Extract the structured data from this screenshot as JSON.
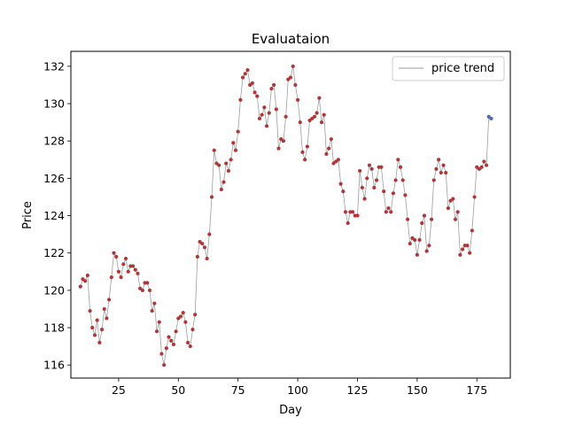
{
  "chart_data": {
    "type": "line",
    "title": "Evaluataion",
    "xlabel": "Day",
    "ylabel": "Price",
    "xlim": [
      5,
      189
    ],
    "ylim": [
      115.3,
      132.8
    ],
    "xticks": [
      25,
      50,
      75,
      100,
      125,
      150,
      175
    ],
    "yticks": [
      116,
      118,
      120,
      122,
      124,
      126,
      128,
      130,
      132
    ],
    "grid": false,
    "legend": {
      "position": "top-right",
      "entries": [
        "price trend"
      ]
    },
    "colors": {
      "line": "#9e9e9e",
      "marker": "#d62728",
      "marker_edge": "#555555",
      "highlight": "#4a6fd1"
    },
    "series": [
      {
        "name": "price trend",
        "x_start": 9,
        "values": [
          120.2,
          120.6,
          120.5,
          120.8,
          118.9,
          118.0,
          117.6,
          118.4,
          117.2,
          117.9,
          119.0,
          118.5,
          119.5,
          120.7,
          122.0,
          121.8,
          121.0,
          120.7,
          121.4,
          121.7,
          121.0,
          121.3,
          121.3,
          121.1,
          120.9,
          120.1,
          120.0,
          120.4,
          120.4,
          120.0,
          118.9,
          119.3,
          117.8,
          118.3,
          116.6,
          116.0,
          116.9,
          117.5,
          117.3,
          117.1,
          117.8,
          118.5,
          118.6,
          118.8,
          118.3,
          117.2,
          117.0,
          117.9,
          118.7,
          121.8,
          122.6,
          122.5,
          122.3,
          121.7,
          123.0,
          125.0,
          127.5,
          126.8,
          126.7,
          125.4,
          125.8,
          126.8,
          126.4,
          127.0,
          127.9,
          127.5,
          128.5,
          130.2,
          131.4,
          131.6,
          131.8,
          131.0,
          131.1,
          130.6,
          130.4,
          129.2,
          129.4,
          129.8,
          128.8,
          129.5,
          130.8,
          131.0,
          129.7,
          127.6,
          128.1,
          128.0,
          129.3,
          131.3,
          131.4,
          132.0,
          131.0,
          130.2,
          129.0,
          127.4,
          127.0,
          127.7,
          129.1,
          129.2,
          129.3,
          129.5,
          130.3,
          129.0,
          129.4,
          127.3,
          127.6,
          128.1,
          126.8,
          126.9,
          127.0,
          125.7,
          125.3,
          124.2,
          123.6,
          124.2,
          124.2,
          124.0,
          124.0,
          126.4,
          125.5,
          124.9,
          126.0,
          126.7,
          126.5,
          125.5,
          125.9,
          126.6,
          126.6,
          125.3,
          124.2,
          124.4,
          124.2,
          125.2,
          125.9,
          127.0,
          126.6,
          125.9,
          125.1,
          123.8,
          122.5,
          122.8,
          122.7,
          121.9,
          122.7,
          123.6,
          124.0,
          122.1,
          122.4,
          123.8,
          125.9,
          126.5,
          127.0,
          126.3,
          126.7,
          126.3,
          124.4,
          124.8,
          124.9,
          123.8,
          124.2,
          121.9,
          122.2,
          122.4,
          122.4,
          122.0,
          123.2,
          125.0,
          126.6,
          126.5,
          126.6,
          126.9,
          126.7,
          129.3,
          129.2
        ]
      }
    ]
  }
}
